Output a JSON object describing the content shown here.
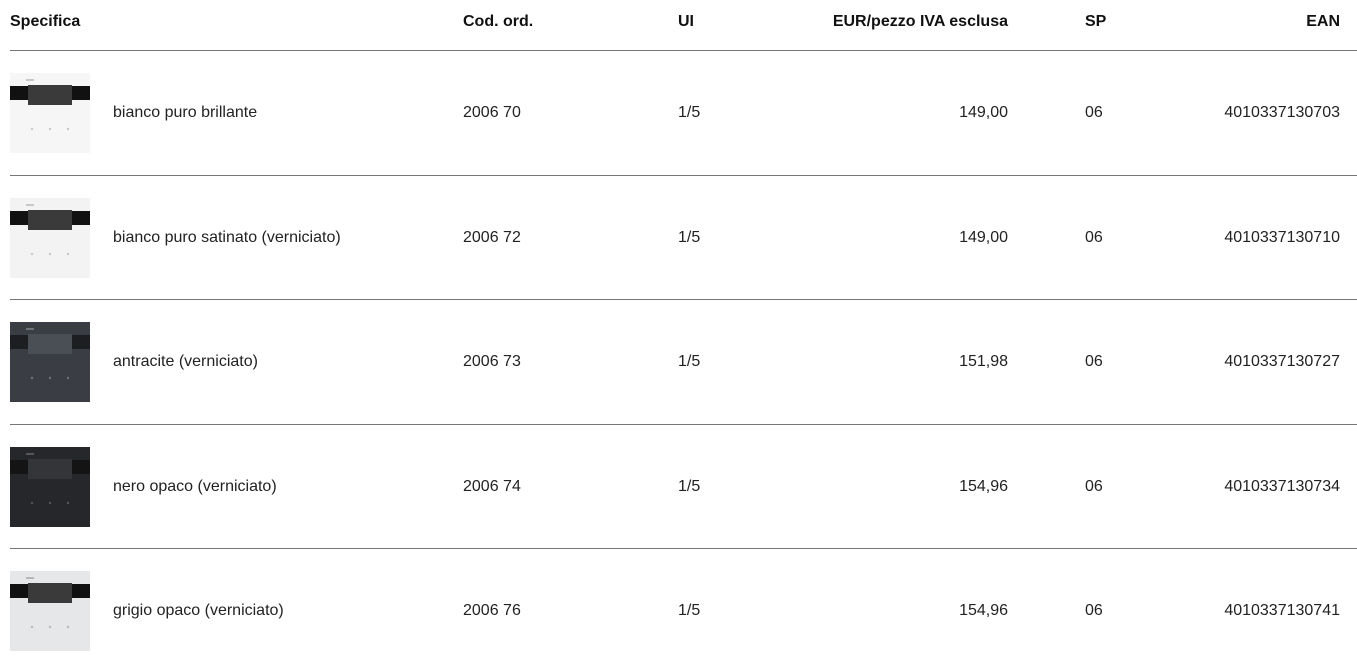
{
  "table": {
    "header": [
      "Specifica",
      "Cod. ord.",
      "UI",
      "EUR/pezzo IVA esclusa",
      "SP",
      "EAN"
    ],
    "rows": [
      [
        "bianco puro brillante",
        "2006 70",
        "1/5",
        "149,00",
        "06",
        "4010337130703"
      ],
      [
        "bianco puro satinato (verniciato)",
        "2006 72",
        "1/5",
        "149,00",
        "06",
        "4010337130710"
      ],
      [
        "antracite (verniciato)",
        "2006 73",
        "1/5",
        "151,98",
        "06",
        "4010337130727"
      ],
      [
        "nero opaco (verniciato)",
        "2006 74",
        "1/5",
        "154,96",
        "06",
        "4010337130734"
      ],
      [
        "grigio opaco (verniciato)",
        "2006 76",
        "1/5",
        "154,96",
        "06",
        "4010337130741"
      ]
    ]
  }
}
